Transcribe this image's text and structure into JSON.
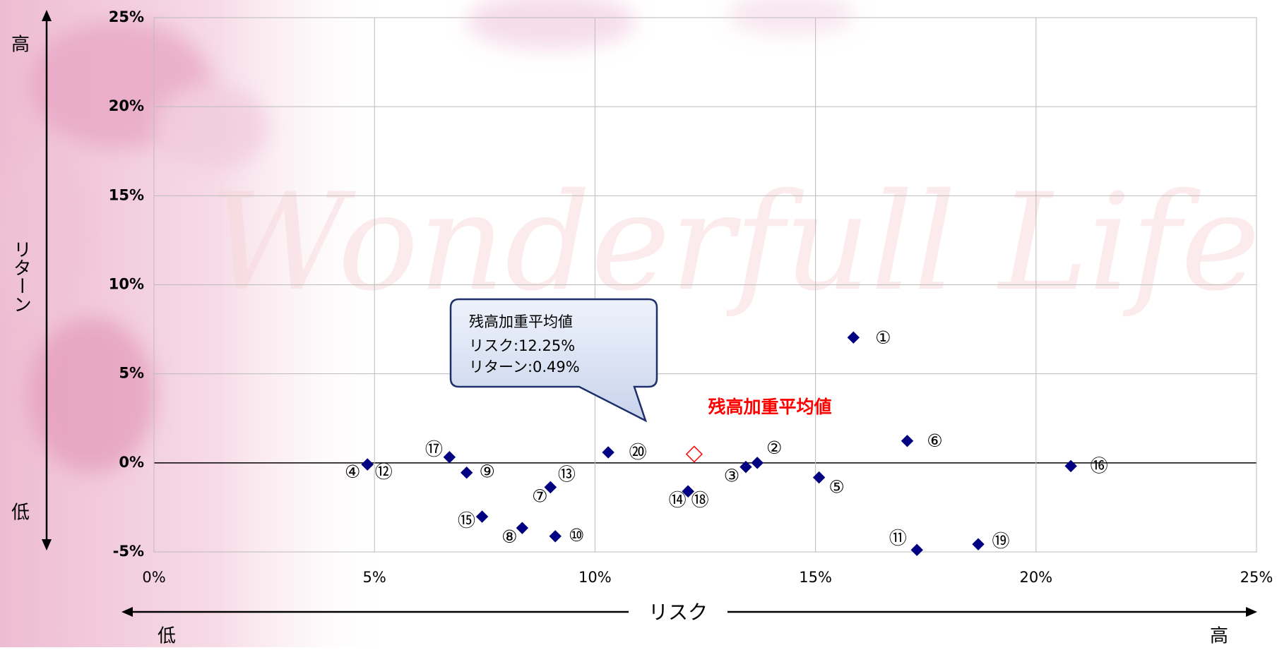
{
  "chart_data": {
    "type": "scatter",
    "xlim": [
      0,
      25
    ],
    "ylim": [
      -5,
      25
    ],
    "xticks": [
      {
        "value": 0,
        "label": "0%"
      },
      {
        "value": 5,
        "label": "5%"
      },
      {
        "value": 10,
        "label": "10%"
      },
      {
        "value": 15,
        "label": "15%"
      },
      {
        "value": 20,
        "label": "20%"
      },
      {
        "value": 25,
        "label": "25%"
      }
    ],
    "yticks": [
      {
        "value": -5,
        "label": "-5%"
      },
      {
        "value": 0,
        "label": "0%"
      },
      {
        "value": 5,
        "label": "5%"
      },
      {
        "value": 10,
        "label": "10%"
      },
      {
        "value": 15,
        "label": "15%"
      },
      {
        "value": 20,
        "label": "20%"
      },
      {
        "value": 25,
        "label": "25%"
      }
    ],
    "grid": true,
    "x_axis_label": "リスク",
    "y_axis_label": "リターン",
    "axis_high": "高",
    "axis_low": "低",
    "watermark": "Wonderfull Life",
    "series": [
      {
        "color": "#000080",
        "x": [
          15.86,
          13.68,
          13.42,
          4.84,
          15.08,
          17.08,
          8.99,
          8.35,
          7.09,
          9.1,
          17.3,
          4.84,
          8.99,
          12.11,
          7.44,
          20.79,
          6.7,
          12.11,
          18.69,
          10.3
        ],
        "values": [
          7.04,
          0.0,
          -0.23,
          -0.09,
          -0.82,
          1.23,
          -1.37,
          -3.66,
          -0.55,
          -4.12,
          -4.89,
          -0.09,
          -1.37,
          -1.6,
          -3.02,
          -0.18,
          0.32,
          -1.6,
          -4.57,
          0.59
        ],
        "point_labels": [
          "①",
          "②",
          "③",
          "④",
          "⑤",
          "⑥",
          "⑦",
          "⑧",
          "⑨",
          "⑩",
          "⑪",
          "⑫",
          "⑬",
          "⑭",
          "⑮",
          "⑯",
          "⑰",
          "⑱",
          "⑲",
          "⑳"
        ]
      },
      {
        "color": "#ff0000",
        "x": [
          12.25
        ],
        "values": [
          0.49
        ],
        "label": "残高加重平均値"
      }
    ],
    "callout": [
      "残高加重平均値",
      "リスク:12.25%",
      "リターン:0.49%"
    ]
  }
}
